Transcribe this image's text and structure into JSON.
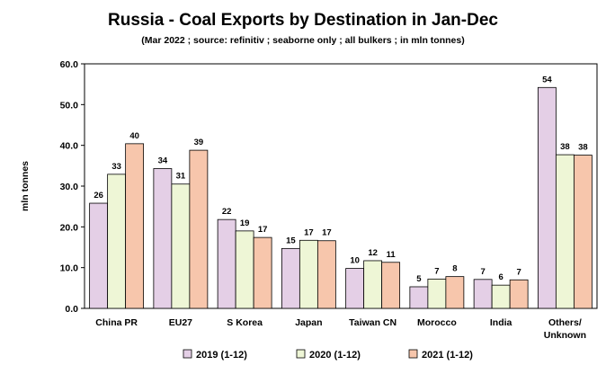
{
  "chart_data": {
    "type": "bar",
    "title": "Russia - Coal Exports by Destination in Jan-Dec",
    "subtitle": "(Mar 2022 ; source: refinitiv ; seaborne only ; all bulkers ; in mln tonnes)",
    "ylabel": "mln tonnes",
    "xlabel": "",
    "ylim": [
      0,
      60
    ],
    "yticks": [
      "0.0",
      "10.0",
      "20.0",
      "30.0",
      "40.0",
      "50.0",
      "60.0"
    ],
    "ytick_values": [
      0,
      10,
      20,
      30,
      40,
      50,
      60
    ],
    "grid": false,
    "legend_position": "bottom",
    "categories": [
      "China PR",
      "EU27",
      "S Korea",
      "Japan",
      "Taiwan CN",
      "Morocco",
      "India",
      "Others/ Unknown"
    ],
    "category_lines": [
      [
        "China PR"
      ],
      [
        "EU27"
      ],
      [
        "S Korea"
      ],
      [
        "Japan"
      ],
      [
        "Taiwan CN"
      ],
      [
        "Morocco"
      ],
      [
        "India"
      ],
      [
        "Others/",
        "Unknown"
      ]
    ],
    "series": [
      {
        "name": "2019 (1-12)",
        "color": "#e4cfe6",
        "values": [
          25.8,
          34.3,
          21.8,
          14.7,
          9.8,
          5.3,
          7.1,
          54.2
        ],
        "labels": [
          "26",
          "34",
          "22",
          "15",
          "10",
          "5",
          "7",
          "54"
        ]
      },
      {
        "name": "2020 (1-12)",
        "color": "#eef6d6",
        "values": [
          32.9,
          30.5,
          19.0,
          16.7,
          11.7,
          7.2,
          5.7,
          37.7
        ],
        "labels": [
          "33",
          "31",
          "19",
          "17",
          "12",
          "7",
          "6",
          "38"
        ]
      },
      {
        "name": "2021 (1-12)",
        "color": "#f7c6ac",
        "values": [
          40.4,
          38.8,
          17.4,
          16.6,
          11.3,
          7.8,
          7.0,
          37.6
        ],
        "labels": [
          "40",
          "39",
          "17",
          "17",
          "11",
          "8",
          "7",
          "38"
        ]
      }
    ]
  }
}
